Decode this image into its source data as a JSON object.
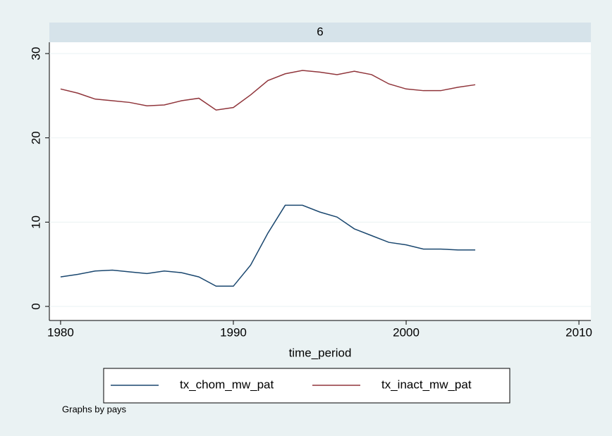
{
  "chart_data": {
    "type": "line",
    "panel_label": "6",
    "x_label": "time_period",
    "note": "Graphs by pays",
    "x": [
      1980,
      1981,
      1982,
      1983,
      1984,
      1985,
      1986,
      1987,
      1988,
      1989,
      1990,
      1991,
      1992,
      1993,
      1994,
      1995,
      1996,
      1997,
      1998,
      1999,
      2000,
      2001,
      2002,
      2003,
      2004
    ],
    "series": [
      {
        "name": "tx_chom_mw_pat",
        "color": "#1a476f",
        "values": [
          3.5,
          3.8,
          4.2,
          4.3,
          4.1,
          3.9,
          4.2,
          4.0,
          3.5,
          2.4,
          2.4,
          4.9,
          8.7,
          12.0,
          12.0,
          11.2,
          10.6,
          9.2,
          8.4,
          7.6,
          7.3,
          6.8,
          6.8,
          6.7,
          6.7
        ]
      },
      {
        "name": "tx_inact_mw_pat",
        "color": "#90353b",
        "values": [
          25.8,
          25.3,
          24.6,
          24.4,
          24.2,
          23.8,
          23.9,
          24.4,
          24.7,
          23.3,
          23.6,
          25.1,
          26.8,
          27.6,
          28.0,
          27.8,
          27.5,
          27.9,
          27.5,
          26.4,
          25.8,
          25.6,
          25.6,
          26.0,
          26.3
        ]
      }
    ],
    "xlim": [
      1979.35,
      2010.69
    ],
    "xticks": [
      1980,
      1990,
      2000,
      2010
    ],
    "ylim": [
      -1.67,
      31.34
    ],
    "yticks": [
      0,
      10,
      20,
      30
    ],
    "grid": true
  }
}
